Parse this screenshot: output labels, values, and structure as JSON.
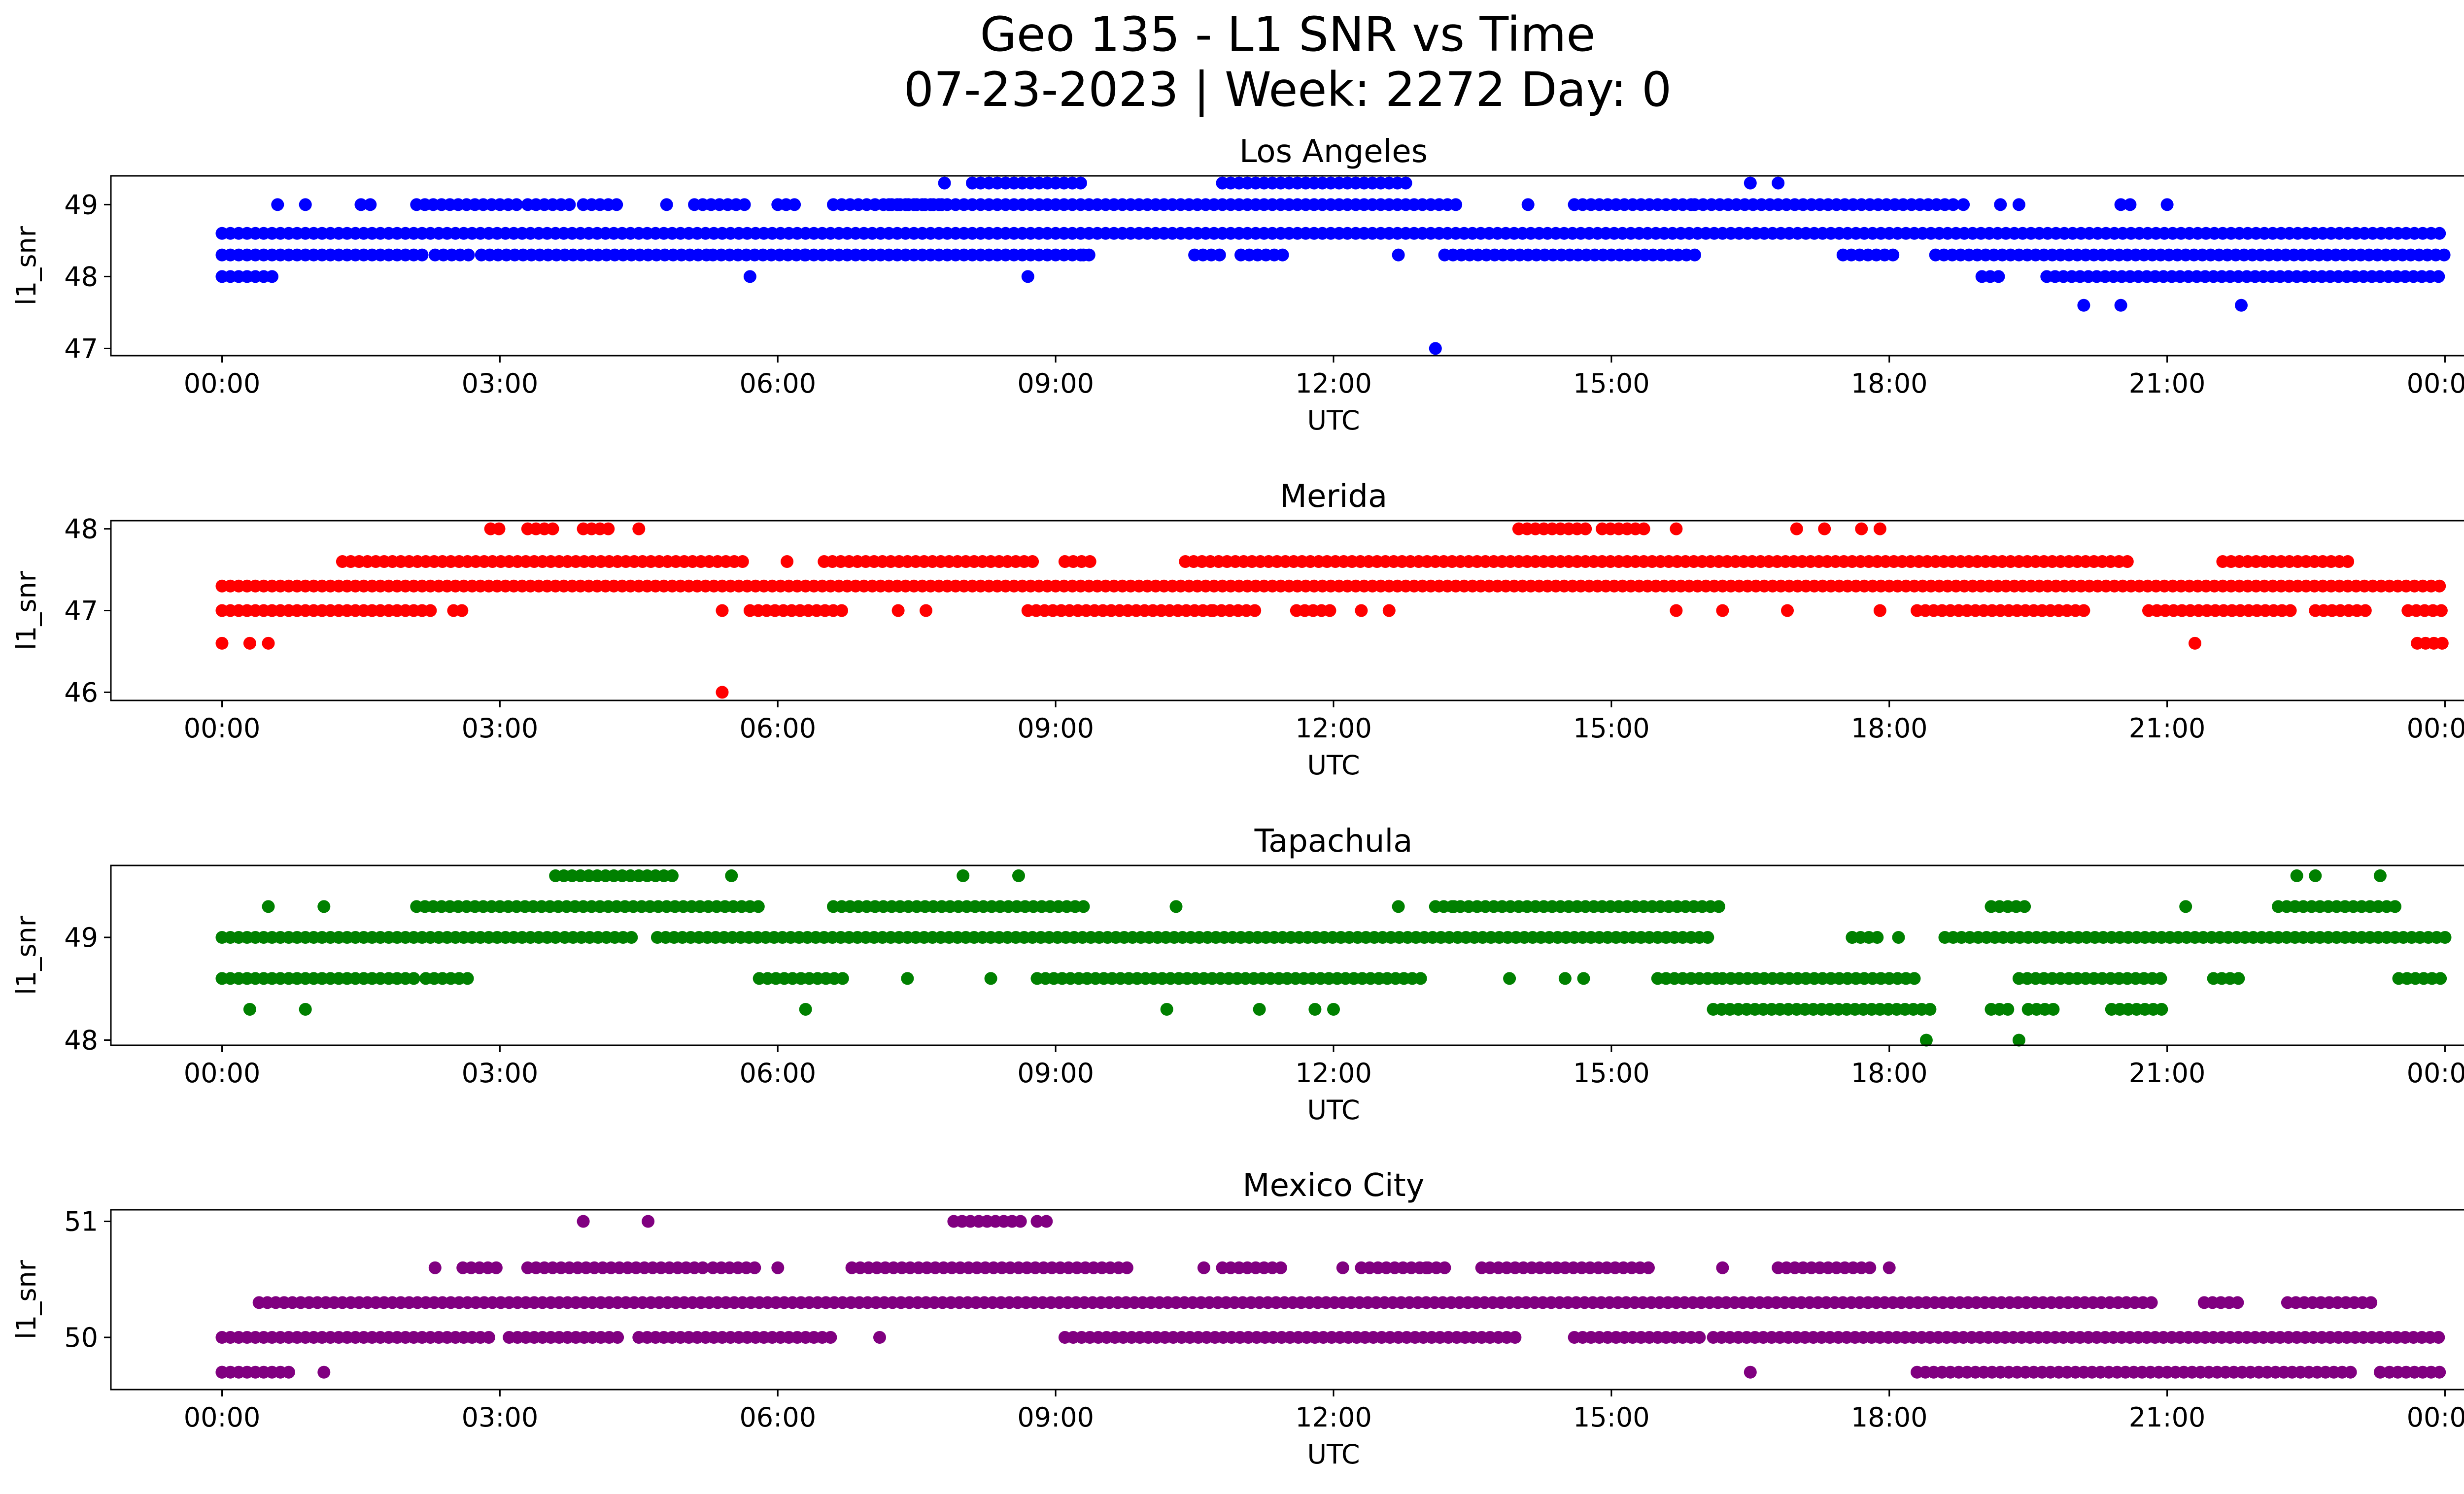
{
  "figure": {
    "title_line1": "Geo 135 - L1 SNR vs Time",
    "title_line2": "07-23-2023 | Week: 2272 Day: 0"
  },
  "chart_data": [
    {
      "type": "scatter",
      "title": "Los Angeles",
      "xlabel": "UTC",
      "ylabel": "l1_snr",
      "color": "#0000ff",
      "xlim_hours": [
        -1.2,
        25.2
      ],
      "ylim": [
        46.9,
        49.4
      ],
      "yticks": [
        47,
        48,
        49
      ],
      "ytick_labels": [
        "47",
        "48",
        "49"
      ],
      "xticks_hours": [
        0,
        3,
        6,
        9,
        12,
        15,
        18,
        21,
        24
      ],
      "xtick_labels": [
        "00:00",
        "03:00",
        "06:00",
        "09:00",
        "12:00",
        "15:00",
        "18:00",
        "21:00",
        "00:00"
      ],
      "bands": [
        {
          "y": 48.6,
          "ranges": [
            [
              0,
              24
            ]
          ]
        },
        {
          "y": 48.3,
          "ranges": [
            [
              0,
              2.2
            ],
            [
              2.3,
              2.7
            ],
            [
              2.8,
              5.3
            ],
            [
              5.3,
              6.3
            ],
            [
              6.3,
              9.4
            ],
            [
              10.5,
              10.8
            ],
            [
              11.0,
              11.5
            ],
            [
              13.2,
              15.9
            ],
            [
              17.5,
              18.1
            ],
            [
              18.5,
              24
            ]
          ]
        },
        {
          "y": 48.0,
          "ranges": [
            [
              0,
              0.6
            ],
            [
              19.0,
              19.2
            ],
            [
              19.7,
              24
            ]
          ]
        },
        {
          "y": 49.0,
          "ranges": [
            [
              2.1,
              3.2
            ],
            [
              3.3,
              3.8
            ],
            [
              3.9,
              4.3
            ],
            [
              5.1,
              5.7
            ],
            [
              6.0,
              6.2
            ],
            [
              6.6,
              7.8
            ],
            [
              7.2,
              13.4
            ],
            [
              14.6,
              15.9
            ],
            [
              15.9,
              18.7
            ]
          ]
        },
        {
          "y": 49.3,
          "ranges": [
            [
              8.1,
              9.3
            ],
            [
              10.8,
              12.8
            ]
          ]
        }
      ],
      "points": [
        {
          "x": 0.6,
          "y": 49.0
        },
        {
          "x": 0.9,
          "y": 49.0
        },
        {
          "x": 1.5,
          "y": 49.0
        },
        {
          "x": 1.6,
          "y": 49.0
        },
        {
          "x": 4.8,
          "y": 49.0
        },
        {
          "x": 7.8,
          "y": 49.3
        },
        {
          "x": 13.1,
          "y": 47.0
        },
        {
          "x": 5.7,
          "y": 48.0
        },
        {
          "x": 8.7,
          "y": 48.0
        },
        {
          "x": 9.3,
          "y": 48.3
        },
        {
          "x": 12.7,
          "y": 48.3
        },
        {
          "x": 14.1,
          "y": 49.0
        },
        {
          "x": 14.6,
          "y": 49.0
        },
        {
          "x": 16.5,
          "y": 49.3
        },
        {
          "x": 16.8,
          "y": 49.3
        },
        {
          "x": 18.8,
          "y": 49.0
        },
        {
          "x": 19.2,
          "y": 49.0
        },
        {
          "x": 19.4,
          "y": 49.0
        },
        {
          "x": 20.1,
          "y": 47.6
        },
        {
          "x": 20.5,
          "y": 47.6
        },
        {
          "x": 20.5,
          "y": 49.0
        },
        {
          "x": 20.6,
          "y": 49.0
        },
        {
          "x": 21.0,
          "y": 49.0
        },
        {
          "x": 21.8,
          "y": 47.6
        }
      ]
    },
    {
      "type": "scatter",
      "title": "Merida",
      "xlabel": "UTC",
      "ylabel": "l1_snr",
      "color": "#ff0000",
      "xlim_hours": [
        -1.2,
        25.2
      ],
      "ylim": [
        45.9,
        48.1
      ],
      "yticks": [
        46,
        47,
        48
      ],
      "ytick_labels": [
        "46",
        "47",
        "48"
      ],
      "xticks_hours": [
        0,
        3,
        6,
        9,
        12,
        15,
        18,
        21,
        24
      ],
      "xtick_labels": [
        "00:00",
        "03:00",
        "06:00",
        "09:00",
        "12:00",
        "15:00",
        "18:00",
        "21:00",
        "00:00"
      ],
      "bands": [
        {
          "y": 47.3,
          "ranges": [
            [
              0,
              24
            ]
          ]
        },
        {
          "y": 47.0,
          "ranges": [
            [
              0,
              2.3
            ],
            [
              2.5,
              2.6
            ],
            [
              5.7,
              6.7
            ],
            [
              8.7,
              10.7
            ],
            [
              10.7,
              11.2
            ],
            [
              11.6,
              12.0
            ],
            [
              18.3,
              20.1
            ],
            [
              20.8,
              22.4
            ],
            [
              22.6,
              23.2
            ],
            [
              23.6,
              24
            ]
          ]
        },
        {
          "y": 47.6,
          "ranges": [
            [
              1.3,
              5.7
            ],
            [
              6.5,
              8.8
            ],
            [
              9.1,
              9.4
            ],
            [
              10.4,
              20.6
            ],
            [
              21.6,
              23.0
            ]
          ]
        },
        {
          "y": 48.0,
          "ranges": [
            [
              2.9,
              3.0
            ],
            [
              3.3,
              3.6
            ],
            [
              3.9,
              4.2
            ],
            [
              14.0,
              14.8
            ],
            [
              14.9,
              15.4
            ]
          ]
        },
        {
          "y": 46.6,
          "ranges": [
            [
              23.7,
              24
            ]
          ]
        }
      ],
      "points": [
        {
          "x": 0.0,
          "y": 46.6
        },
        {
          "x": 0.3,
          "y": 46.6
        },
        {
          "x": 0.5,
          "y": 46.6
        },
        {
          "x": 4.5,
          "y": 48.0
        },
        {
          "x": 5.4,
          "y": 46.0
        },
        {
          "x": 5.4,
          "y": 47.0
        },
        {
          "x": 6.1,
          "y": 47.6
        },
        {
          "x": 7.3,
          "y": 47.0
        },
        {
          "x": 7.6,
          "y": 47.0
        },
        {
          "x": 12.3,
          "y": 47.0
        },
        {
          "x": 12.6,
          "y": 47.0
        },
        {
          "x": 15.7,
          "y": 48.0
        },
        {
          "x": 15.7,
          "y": 47.0
        },
        {
          "x": 16.2,
          "y": 47.0
        },
        {
          "x": 16.9,
          "y": 47.0
        },
        {
          "x": 17.0,
          "y": 48.0
        },
        {
          "x": 17.3,
          "y": 48.0
        },
        {
          "x": 17.7,
          "y": 48.0
        },
        {
          "x": 17.9,
          "y": 48.0
        },
        {
          "x": 17.9,
          "y": 47.0
        },
        {
          "x": 21.3,
          "y": 46.6
        }
      ]
    },
    {
      "type": "scatter",
      "title": "Tapachula",
      "xlabel": "UTC",
      "ylabel": "l1_snr",
      "color": "#008000",
      "xlim_hours": [
        -1.2,
        25.2
      ],
      "ylim": [
        47.95,
        49.7
      ],
      "yticks": [
        48,
        49
      ],
      "ytick_labels": [
        "48",
        "49"
      ],
      "xticks_hours": [
        0,
        3,
        6,
        9,
        12,
        15,
        18,
        21,
        24
      ],
      "xtick_labels": [
        "00:00",
        "03:00",
        "06:00",
        "09:00",
        "12:00",
        "15:00",
        "18:00",
        "21:00",
        "00:00"
      ],
      "bands": [
        {
          "y": 49.0,
          "ranges": [
            [
              0,
              3.6
            ],
            [
              3.7,
              4.5
            ],
            [
              4.7,
              16.1
            ],
            [
              17.6,
              17.9
            ],
            [
              18.6,
              24
            ]
          ]
        },
        {
          "y": 48.6,
          "ranges": [
            [
              0,
              2.1
            ],
            [
              2.2,
              2.7
            ],
            [
              5.8,
              6.7
            ],
            [
              8.8,
              13.0
            ],
            [
              15.5,
              16.2
            ],
            [
              16.2,
              18.3
            ],
            [
              19.4,
              21.0
            ],
            [
              21.5,
              21.8
            ],
            [
              23.5,
              24
            ]
          ]
        },
        {
          "y": 49.3,
          "ranges": [
            [
              2.1,
              5.8
            ],
            [
              6.6,
              9.3
            ],
            [
              13.1,
              16.2
            ],
            [
              19.1,
              19.5
            ],
            [
              22.2,
              23.5
            ]
          ]
        },
        {
          "y": 48.3,
          "ranges": [
            [
              16.1,
              18.5
            ],
            [
              19.1,
              19.3
            ],
            [
              19.5,
              19.8
            ],
            [
              20.4,
              21.0
            ]
          ]
        },
        {
          "y": 49.6,
          "ranges": [
            [
              3.6,
              4.9
            ]
          ]
        }
      ],
      "points": [
        {
          "x": 0.3,
          "y": 48.3
        },
        {
          "x": 0.5,
          "y": 49.3
        },
        {
          "x": 0.9,
          "y": 48.3
        },
        {
          "x": 1.1,
          "y": 49.3
        },
        {
          "x": 5.5,
          "y": 49.6
        },
        {
          "x": 6.3,
          "y": 48.3
        },
        {
          "x": 7.4,
          "y": 48.6
        },
        {
          "x": 8.0,
          "y": 49.6
        },
        {
          "x": 8.3,
          "y": 48.6
        },
        {
          "x": 8.6,
          "y": 49.6
        },
        {
          "x": 10.2,
          "y": 48.3
        },
        {
          "x": 10.3,
          "y": 49.3
        },
        {
          "x": 11.2,
          "y": 48.3
        },
        {
          "x": 11.8,
          "y": 48.3
        },
        {
          "x": 12.0,
          "y": 48.3
        },
        {
          "x": 12.7,
          "y": 49.3
        },
        {
          "x": 13.3,
          "y": 49.3
        },
        {
          "x": 13.9,
          "y": 48.6
        },
        {
          "x": 14.5,
          "y": 48.6
        },
        {
          "x": 14.7,
          "y": 48.6
        },
        {
          "x": 17.6,
          "y": 49.0
        },
        {
          "x": 18.1,
          "y": 49.0
        },
        {
          "x": 18.4,
          "y": 48.0
        },
        {
          "x": 19.4,
          "y": 48.0
        },
        {
          "x": 21.2,
          "y": 49.3
        },
        {
          "x": 22.4,
          "y": 49.6
        },
        {
          "x": 22.6,
          "y": 49.6
        },
        {
          "x": 23.3,
          "y": 49.6
        }
      ]
    },
    {
      "type": "scatter",
      "title": "Mexico City",
      "xlabel": "UTC",
      "ylabel": "l1_snr",
      "color": "#800080",
      "xlim_hours": [
        -1.2,
        25.2
      ],
      "ylim": [
        49.55,
        51.1
      ],
      "yticks": [
        50,
        51
      ],
      "ytick_labels": [
        "50",
        "51"
      ],
      "xticks_hours": [
        0,
        3,
        6,
        9,
        12,
        15,
        18,
        21,
        24
      ],
      "xtick_labels": [
        "00:00",
        "03:00",
        "06:00",
        "09:00",
        "12:00",
        "15:00",
        "18:00",
        "21:00",
        "00:00"
      ],
      "bands": [
        {
          "y": 50.3,
          "ranges": [
            [
              0.4,
              20.9
            ],
            [
              21.4,
              21.8
            ],
            [
              22.3,
              23.2
            ]
          ]
        },
        {
          "y": 50.0,
          "ranges": [
            [
              0,
              2.9
            ],
            [
              3.1,
              4.3
            ],
            [
              4.5,
              6.6
            ],
            [
              9.1,
              14.0
            ],
            [
              14.6,
              16.0
            ],
            [
              16.1,
              24
            ]
          ]
        },
        {
          "y": 49.7,
          "ranges": [
            [
              0,
              0.8
            ],
            [
              18.3,
              23.0
            ],
            [
              23.4,
              24
            ]
          ]
        },
        {
          "y": 50.6,
          "ranges": [
            [
              2.6,
              3.0
            ],
            [
              3.3,
              5.2
            ],
            [
              5.3,
              5.8
            ],
            [
              6.8,
              9.8
            ],
            [
              10.8,
              11.5
            ],
            [
              12.3,
              13.2
            ],
            [
              13.6,
              15.4
            ],
            [
              16.8,
              17.8
            ]
          ]
        },
        {
          "y": 51.0,
          "ranges": [
            [
              7.9,
              8.7
            ]
          ]
        }
      ],
      "points": [
        {
          "x": 0.0,
          "y": 49.7
        },
        {
          "x": 1.1,
          "y": 49.7
        },
        {
          "x": 2.3,
          "y": 50.6
        },
        {
          "x": 3.9,
          "y": 51.0
        },
        {
          "x": 4.6,
          "y": 51.0
        },
        {
          "x": 6.0,
          "y": 50.6
        },
        {
          "x": 7.1,
          "y": 50.0
        },
        {
          "x": 8.8,
          "y": 51.0
        },
        {
          "x": 8.9,
          "y": 51.0
        },
        {
          "x": 10.6,
          "y": 50.6
        },
        {
          "x": 12.1,
          "y": 50.6
        },
        {
          "x": 13.0,
          "y": 50.6
        },
        {
          "x": 16.2,
          "y": 50.6
        },
        {
          "x": 16.5,
          "y": 49.7
        },
        {
          "x": 18.0,
          "y": 50.6
        },
        {
          "x": 23.3,
          "y": 49.7
        }
      ]
    }
  ]
}
